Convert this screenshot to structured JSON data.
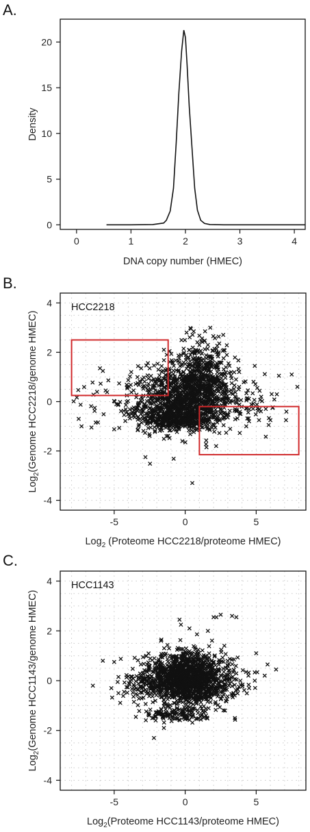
{
  "panels": {
    "a": "A.",
    "b": "B.",
    "c": "C."
  },
  "colors": {
    "axis": "#111111",
    "marks": "#111111",
    "grid": "#c8c8c8",
    "box": "#d0282a"
  },
  "chart_data": [
    {
      "type": "line",
      "xlabel": "DNA copy number (HMEC)",
      "ylabel": "Density",
      "xlim": [
        -0.3,
        4.2
      ],
      "ylim": [
        -0.5,
        22.5
      ],
      "xticks": [
        "0",
        "1",
        "2",
        "3",
        "4"
      ],
      "yticks": [
        "0",
        "5",
        "10",
        "15",
        "20"
      ],
      "grid": false,
      "series": [
        {
          "x": [
            0.55,
            1.0,
            1.4,
            1.6,
            1.65,
            1.72,
            1.78,
            1.83,
            1.88,
            1.93,
            1.97,
            2.0,
            2.03,
            2.07,
            2.12,
            2.17,
            2.22,
            2.28,
            2.35,
            2.45,
            2.7,
            3.2,
            4.2
          ],
          "y": [
            0.0,
            0.0,
            0.03,
            0.2,
            0.5,
            1.5,
            4.0,
            9.0,
            14.5,
            19.0,
            21.3,
            20.5,
            17.5,
            13.0,
            8.5,
            4.0,
            1.6,
            0.5,
            0.15,
            0.03,
            0.0,
            0.0,
            0.0
          ]
        }
      ]
    },
    {
      "type": "scatter",
      "inset_label": "HCC2218",
      "xlabel_main": "Log",
      "xlabel_sub": "2",
      "xlabel_rest": " (Proteome HCC2218/proteome HMEC)",
      "ylabel_main": "Log",
      "ylabel_sub": "2",
      "ylabel_rest": "(Genome HCC2218/genome HMEC)",
      "xlim": [
        -8.8,
        8.5
      ],
      "ylim": [
        -4.4,
        4.4
      ],
      "xticks": [
        "-5",
        "0",
        "5"
      ],
      "yticks": [
        "-4",
        "-2",
        "0",
        "2",
        "4"
      ],
      "grid": true,
      "marker": "x",
      "highlight_boxes": [
        {
          "x": [
            -8.0,
            -1.2
          ],
          "y": [
            0.25,
            2.5
          ]
        },
        {
          "x": [
            1.0,
            8.0
          ],
          "y": [
            -2.15,
            -0.2
          ]
        }
      ],
      "clusters": [
        {
          "cx": 0.0,
          "cy": 0.0,
          "sx": 1.6,
          "sy": 0.6,
          "n": 900
        },
        {
          "cx": 0.8,
          "cy": 0.9,
          "sx": 1.5,
          "sy": 0.5,
          "n": 350
        },
        {
          "cx": -0.5,
          "cy": -0.7,
          "sx": 1.4,
          "sy": 0.2,
          "n": 350
        },
        {
          "cx": 1.2,
          "cy": 1.8,
          "sx": 0.9,
          "sy": 0.5,
          "n": 120
        },
        {
          "cx": -3.5,
          "cy": 0.0,
          "sx": 2.0,
          "sy": 0.5,
          "n": 80
        },
        {
          "cx": 3.6,
          "cy": -0.1,
          "sx": 1.6,
          "sy": 0.5,
          "n": 90
        }
      ],
      "outliers": [
        {
          "x": -7.5,
          "y": -0.7
        },
        {
          "x": -7.3,
          "y": -1.0
        },
        {
          "x": -6.6,
          "y": -1.05
        },
        {
          "x": -6.3,
          "y": -0.85
        },
        {
          "x": -6.0,
          "y": 1.35
        },
        {
          "x": -5.6,
          "y": 0.45
        },
        {
          "x": -3.8,
          "y": 1.2
        },
        {
          "x": -3.1,
          "y": 1.35
        },
        {
          "x": -2.5,
          "y": 1.35
        },
        {
          "x": -1.5,
          "y": 2.1
        },
        {
          "x": -1.3,
          "y": 1.9
        },
        {
          "x": -1.1,
          "y": 2.05
        },
        {
          "x": -2.8,
          "y": -2.25
        },
        {
          "x": 0.4,
          "y": 2.95
        },
        {
          "x": 0.6,
          "y": 2.85
        },
        {
          "x": 1.4,
          "y": 2.85
        },
        {
          "x": 0.1,
          "y": 2.8
        },
        {
          "x": -0.2,
          "y": -1.6
        },
        {
          "x": 0.5,
          "y": -3.3
        },
        {
          "x": 1.5,
          "y": -1.85
        },
        {
          "x": 5.2,
          "y": -0.75
        },
        {
          "x": 6.0,
          "y": -0.75
        },
        {
          "x": 7.1,
          "y": -0.75
        },
        {
          "x": 7.9,
          "y": 0.6
        },
        {
          "x": 7.5,
          "y": 1.1
        },
        {
          "x": 6.6,
          "y": 1.05
        },
        {
          "x": 4.9,
          "y": 1.45
        },
        {
          "x": 3.8,
          "y": 1.2
        },
        {
          "x": 1.6,
          "y": 2.3
        },
        {
          "x": 2.2,
          "y": 2.0
        },
        {
          "x": 3.9,
          "y": -0.5
        },
        {
          "x": 4.3,
          "y": -1.0
        }
      ]
    },
    {
      "type": "scatter",
      "inset_label": "HCC1143",
      "xlabel_main": "Log",
      "xlabel_sub": "2",
      "xlabel_rest": "(Proteome HCC1143/proteome HMEC)",
      "ylabel_main": "Log",
      "ylabel_sub": "2",
      "ylabel_rest": "(Genome HCC1143/genome HMEC)",
      "xlim": [
        -8.8,
        8.5
      ],
      "ylim": [
        -4.4,
        4.4
      ],
      "xticks": [
        "-5",
        "0",
        "5"
      ],
      "yticks": [
        "-4",
        "-2",
        "0",
        "2",
        "4"
      ],
      "grid": true,
      "marker": "x",
      "highlight_boxes": [],
      "clusters": [
        {
          "cx": 0.0,
          "cy": 0.1,
          "sx": 1.3,
          "sy": 0.5,
          "n": 1400
        },
        {
          "cx": -0.6,
          "cy": -1.35,
          "sx": 1.1,
          "sy": 0.15,
          "n": 120
        },
        {
          "cx": -2.8,
          "cy": -0.05,
          "sx": 0.9,
          "sy": 0.45,
          "n": 110
        },
        {
          "cx": 2.6,
          "cy": 0.1,
          "sx": 1.0,
          "sy": 0.5,
          "n": 120
        }
      ],
      "outliers": [
        {
          "x": -6.5,
          "y": -0.2
        },
        {
          "x": -5.8,
          "y": 0.8
        },
        {
          "x": -5.0,
          "y": 0.75
        },
        {
          "x": -5.2,
          "y": -0.3
        },
        {
          "x": -4.7,
          "y": -0.5
        },
        {
          "x": -4.3,
          "y": -0.45
        },
        {
          "x": -2.2,
          "y": -2.3
        },
        {
          "x": -1.5,
          "y": -1.9
        },
        {
          "x": -0.4,
          "y": 2.45
        },
        {
          "x": -0.3,
          "y": 2.25
        },
        {
          "x": -1.7,
          "y": 1.6
        },
        {
          "x": 0.3,
          "y": 2.1
        },
        {
          "x": 1.6,
          "y": 2.0
        },
        {
          "x": 2.2,
          "y": 2.55
        },
        {
          "x": 2.5,
          "y": 2.65
        },
        {
          "x": 2.0,
          "y": 2.55
        },
        {
          "x": 3.3,
          "y": 2.6
        },
        {
          "x": 3.6,
          "y": 2.55
        },
        {
          "x": 5.0,
          "y": 1.1
        },
        {
          "x": 5.6,
          "y": 0.2
        },
        {
          "x": 6.4,
          "y": 0.45
        },
        {
          "x": 5.8,
          "y": 0.65
        },
        {
          "x": 3.5,
          "y": -1.5
        },
        {
          "x": 2.8,
          "y": -1.2
        },
        {
          "x": 4.5,
          "y": -0.3
        },
        {
          "x": 4.9,
          "y": 0.0
        }
      ]
    }
  ]
}
